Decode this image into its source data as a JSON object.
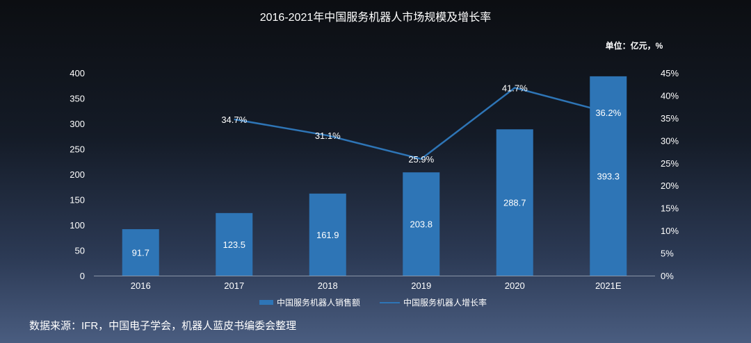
{
  "chart_data": {
    "type": "bar",
    "title": "2016-2021年中国服务机器人市场规模及增长率",
    "unit_label": "单位：亿元，%",
    "categories": [
      "2016",
      "2017",
      "2018",
      "2019",
      "2020",
      "2021E"
    ],
    "series": [
      {
        "name": "中国服务机器人销售额",
        "type": "bar",
        "axis": "left",
        "values": [
          91.7,
          123.5,
          161.9,
          203.8,
          288.7,
          393.3
        ],
        "labels": [
          "91.7",
          "123.5",
          "161.9",
          "203.8",
          "288.7",
          "393.3"
        ],
        "color": "#2e75b6"
      },
      {
        "name": "中国服务机器人增长率",
        "type": "line",
        "axis": "right",
        "x": [
          "2017",
          "2018",
          "2019",
          "2020",
          "2021E"
        ],
        "values": [
          34.7,
          31.1,
          25.9,
          41.7,
          36.2
        ],
        "labels": [
          "34.7%",
          "31.1%",
          "25.9%",
          "41.7%",
          "36.2%"
        ],
        "color": "#2e75b6"
      }
    ],
    "y_left": {
      "ylim": [
        0,
        400
      ],
      "ticks": [
        "0",
        "50",
        "100",
        "150",
        "200",
        "250",
        "300",
        "350",
        "400"
      ]
    },
    "y_right": {
      "ylim": [
        0,
        45
      ],
      "ticks": [
        "0%",
        "5%",
        "10%",
        "15%",
        "20%",
        "25%",
        "30%",
        "35%",
        "40%",
        "45%"
      ]
    },
    "grid": false,
    "legend_position": "bottom"
  },
  "source_text": "数据来源：IFR，中国电子学会，机器人蓝皮书编委会整理"
}
